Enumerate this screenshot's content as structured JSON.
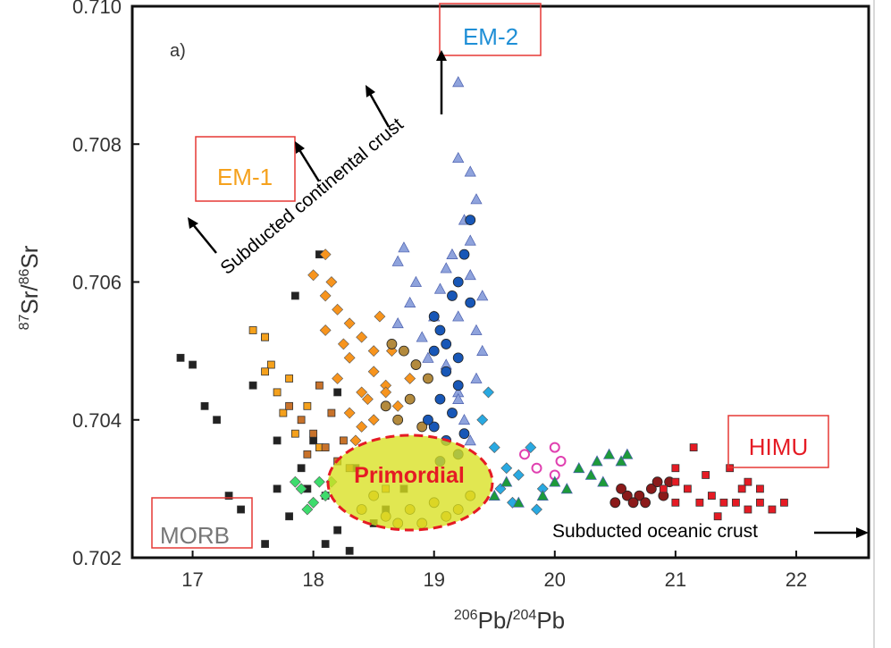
{
  "chart_data": {
    "type": "scatter",
    "panel_label": "a)",
    "xlabel": {
      "sup1": "206",
      "base1": "Pb/",
      "sup2": "204",
      "base2": "Pb"
    },
    "ylabel": {
      "sup1": "87",
      "base1": "Sr/",
      "sup2": "86",
      "base2": "Sr"
    },
    "xlim": [
      16.5,
      22.6
    ],
    "ylim": [
      0.702,
      0.71
    ],
    "x_ticks": [
      "17",
      "18",
      "19",
      "20",
      "21",
      "22"
    ],
    "y_ticks": [
      "0.702",
      "0.704",
      "0.706",
      "0.708",
      "0.710"
    ],
    "end_members": [
      {
        "label": "EM-1",
        "color": "#f5a11c"
      },
      {
        "label": "EM-2",
        "color": "#1f8fd6"
      },
      {
        "label": "HIMU",
        "color": "#e51b24"
      },
      {
        "label": "MORB",
        "color": "#777777"
      }
    ],
    "annotations": {
      "continental": "Subducted continental crust",
      "oceanic": "Subducted oceanic crust",
      "primordial": "Primordial"
    },
    "colors": {
      "box_border": "#e53935",
      "primordial_fill": "#d8e020",
      "primordial_text": "#e51b24"
    },
    "series": [
      {
        "group": "black-squares",
        "marker": "square",
        "color": "#222222",
        "points": [
          [
            16.9,
            0.7049
          ],
          [
            17.0,
            0.7048
          ],
          [
            17.1,
            0.7042
          ],
          [
            17.2,
            0.704
          ],
          [
            17.3,
            0.7029
          ],
          [
            17.4,
            0.7027
          ],
          [
            17.6,
            0.7022
          ],
          [
            17.7,
            0.703
          ],
          [
            17.8,
            0.7026
          ],
          [
            17.9,
            0.7033
          ],
          [
            18.0,
            0.7037
          ],
          [
            18.1,
            0.7029
          ],
          [
            18.2,
            0.7024
          ],
          [
            18.3,
            0.7021
          ],
          [
            17.85,
            0.7058
          ],
          [
            17.6,
            0.7052
          ],
          [
            17.5,
            0.7045
          ],
          [
            18.05,
            0.7064
          ],
          [
            18.2,
            0.7044
          ],
          [
            17.95,
            0.703
          ],
          [
            18.35,
            0.7033
          ],
          [
            18.4,
            0.7027
          ],
          [
            18.5,
            0.7025
          ],
          [
            18.6,
            0.7027
          ],
          [
            18.75,
            0.703
          ],
          [
            17.7,
            0.7037
          ],
          [
            18.1,
            0.7022
          ]
        ]
      },
      {
        "group": "orange-squares",
        "marker": "square",
        "color": "#f5a11c",
        "points": [
          [
            17.5,
            0.7053
          ],
          [
            17.6,
            0.7052
          ],
          [
            17.65,
            0.7048
          ],
          [
            17.7,
            0.7044
          ],
          [
            17.75,
            0.7041
          ],
          [
            17.8,
            0.7046
          ],
          [
            17.85,
            0.7038
          ],
          [
            17.6,
            0.7047
          ],
          [
            17.95,
            0.7042
          ],
          [
            18.05,
            0.7036
          ],
          [
            18.6,
            0.703
          ]
        ]
      },
      {
        "group": "brown-squares",
        "marker": "square",
        "color": "#c8722a",
        "points": [
          [
            17.8,
            0.7042
          ],
          [
            17.9,
            0.704
          ],
          [
            18.0,
            0.7038
          ],
          [
            18.1,
            0.7036
          ],
          [
            18.2,
            0.7034
          ],
          [
            18.15,
            0.7041
          ],
          [
            18.3,
            0.7033
          ],
          [
            18.05,
            0.7045
          ],
          [
            17.95,
            0.7035
          ],
          [
            18.25,
            0.7037
          ]
        ]
      },
      {
        "group": "orange-diamonds",
        "marker": "diamond",
        "color": "#f7941d",
        "points": [
          [
            18.0,
            0.7061
          ],
          [
            18.1,
            0.7058
          ],
          [
            18.2,
            0.7056
          ],
          [
            18.3,
            0.7054
          ],
          [
            18.4,
            0.7052
          ],
          [
            18.5,
            0.705
          ],
          [
            18.1,
            0.7053
          ],
          [
            18.3,
            0.7049
          ],
          [
            18.5,
            0.7047
          ],
          [
            18.6,
            0.7045
          ],
          [
            18.2,
            0.7046
          ],
          [
            18.4,
            0.7044
          ],
          [
            18.3,
            0.7041
          ],
          [
            18.5,
            0.704
          ],
          [
            18.35,
            0.7037
          ],
          [
            18.45,
            0.7043
          ],
          [
            18.7,
            0.7042
          ],
          [
            18.25,
            0.7051
          ],
          [
            18.1,
            0.7064
          ],
          [
            18.55,
            0.7055
          ],
          [
            18.65,
            0.705
          ],
          [
            18.8,
            0.7046
          ],
          [
            18.4,
            0.7039
          ],
          [
            18.6,
            0.7044
          ],
          [
            18.15,
            0.706
          ]
        ]
      },
      {
        "group": "olive-circles",
        "marker": "circle",
        "color": "#b38a3d",
        "points": [
          [
            18.65,
            0.7051
          ],
          [
            18.75,
            0.705
          ],
          [
            18.85,
            0.7048
          ],
          [
            18.95,
            0.7046
          ],
          [
            18.8,
            0.7043
          ],
          [
            18.7,
            0.704
          ],
          [
            18.9,
            0.7039
          ],
          [
            18.6,
            0.7042
          ]
        ]
      },
      {
        "group": "em2-triangles",
        "marker": "triangle",
        "color": "#8fa3dc",
        "points": [
          [
            19.2,
            0.7089
          ],
          [
            19.2,
            0.7078
          ],
          [
            19.3,
            0.7076
          ],
          [
            19.35,
            0.7072
          ],
          [
            19.25,
            0.7069
          ],
          [
            19.15,
            0.7064
          ],
          [
            19.1,
            0.7062
          ],
          [
            19.3,
            0.7061
          ],
          [
            19.4,
            0.7058
          ],
          [
            19.05,
            0.7059
          ],
          [
            18.75,
            0.7065
          ],
          [
            18.7,
            0.7063
          ],
          [
            18.8,
            0.7057
          ],
          [
            18.7,
            0.7054
          ],
          [
            18.9,
            0.7052
          ],
          [
            19.0,
            0.7055
          ],
          [
            19.2,
            0.7055
          ],
          [
            19.35,
            0.7053
          ],
          [
            19.4,
            0.705
          ],
          [
            19.35,
            0.7046
          ],
          [
            19.2,
            0.7044
          ],
          [
            19.25,
            0.704
          ],
          [
            19.3,
            0.7037
          ],
          [
            19.2,
            0.7043
          ],
          [
            18.95,
            0.7049
          ],
          [
            19.1,
            0.7048
          ],
          [
            18.85,
            0.706
          ],
          [
            19.3,
            0.7066
          ]
        ]
      },
      {
        "group": "em2-circles",
        "marker": "circle",
        "color": "#1857b7",
        "points": [
          [
            19.3,
            0.7069
          ],
          [
            19.25,
            0.7064
          ],
          [
            19.2,
            0.706
          ],
          [
            19.15,
            0.7058
          ],
          [
            19.3,
            0.7057
          ],
          [
            19.0,
            0.7055
          ],
          [
            19.05,
            0.7053
          ],
          [
            19.1,
            0.7051
          ],
          [
            19.2,
            0.7049
          ],
          [
            19.0,
            0.705
          ],
          [
            19.1,
            0.7047
          ],
          [
            19.2,
            0.7045
          ],
          [
            19.05,
            0.7043
          ],
          [
            19.15,
            0.7041
          ],
          [
            19.0,
            0.7039
          ],
          [
            19.1,
            0.7037
          ],
          [
            19.2,
            0.7035
          ],
          [
            19.05,
            0.7034
          ],
          [
            18.95,
            0.704
          ],
          [
            19.25,
            0.7038
          ]
        ]
      },
      {
        "group": "blue-diamonds",
        "marker": "diamond",
        "color": "#29a9e1",
        "points": [
          [
            19.4,
            0.704
          ],
          [
            19.5,
            0.7036
          ],
          [
            19.6,
            0.7033
          ],
          [
            19.55,
            0.703
          ],
          [
            19.7,
            0.7032
          ],
          [
            19.8,
            0.7036
          ],
          [
            19.9,
            0.703
          ],
          [
            19.45,
            0.7044
          ],
          [
            19.65,
            0.7028
          ],
          [
            19.85,
            0.7027
          ]
        ]
      },
      {
        "group": "magenta-circles",
        "marker": "ring",
        "color": "#e040b0",
        "points": [
          [
            19.75,
            0.7035
          ],
          [
            19.85,
            0.7033
          ],
          [
            20.0,
            0.7036
          ],
          [
            20.05,
            0.7034
          ],
          [
            20.0,
            0.7032
          ]
        ]
      },
      {
        "group": "green-triangles",
        "marker": "triangle",
        "color": "#1d9a3a",
        "points": [
          [
            19.5,
            0.7029
          ],
          [
            19.6,
            0.7031
          ],
          [
            19.7,
            0.7028
          ],
          [
            19.9,
            0.7029
          ],
          [
            20.0,
            0.7031
          ],
          [
            20.1,
            0.703
          ],
          [
            20.2,
            0.7033
          ],
          [
            20.3,
            0.7032
          ],
          [
            20.35,
            0.7034
          ],
          [
            20.45,
            0.7035
          ],
          [
            20.55,
            0.7034
          ],
          [
            20.4,
            0.7031
          ],
          [
            20.6,
            0.7035
          ]
        ]
      },
      {
        "group": "green-diamonds",
        "marker": "diamond",
        "color": "#3ddc6c",
        "points": [
          [
            17.9,
            0.703
          ],
          [
            18.0,
            0.7028
          ],
          [
            18.1,
            0.7029
          ],
          [
            17.85,
            0.7031
          ],
          [
            18.05,
            0.7031
          ],
          [
            17.95,
            0.7027
          ],
          [
            18.15,
            0.7031
          ]
        ]
      },
      {
        "group": "himu-circles",
        "marker": "circle",
        "color": "#8b1a1a",
        "points": [
          [
            20.5,
            0.7028
          ],
          [
            20.6,
            0.7029
          ],
          [
            20.7,
            0.7029
          ],
          [
            20.8,
            0.703
          ],
          [
            20.9,
            0.7029
          ],
          [
            20.75,
            0.7028
          ],
          [
            20.65,
            0.7028
          ],
          [
            20.85,
            0.7031
          ],
          [
            20.55,
            0.703
          ],
          [
            20.95,
            0.7031
          ]
        ]
      },
      {
        "group": "himu-squares",
        "marker": "square",
        "color": "#e51b24",
        "points": [
          [
            20.9,
            0.703
          ],
          [
            21.0,
            0.7031
          ],
          [
            21.0,
            0.7028
          ],
          [
            21.1,
            0.703
          ],
          [
            21.2,
            0.7028
          ],
          [
            21.3,
            0.7029
          ],
          [
            21.4,
            0.7028
          ],
          [
            21.5,
            0.7028
          ],
          [
            21.6,
            0.7027
          ],
          [
            21.7,
            0.7028
          ],
          [
            21.8,
            0.7027
          ],
          [
            21.9,
            0.7028
          ],
          [
            21.25,
            0.7032
          ],
          [
            21.15,
            0.7036
          ],
          [
            21.45,
            0.7033
          ],
          [
            21.7,
            0.703
          ],
          [
            21.6,
            0.7031
          ],
          [
            21.35,
            0.7026
          ],
          [
            21.55,
            0.703
          ],
          [
            21.0,
            0.7033
          ]
        ]
      },
      {
        "group": "yellow-circles",
        "marker": "circle",
        "color": "#e8b23a",
        "points": [
          [
            18.4,
            0.7027
          ],
          [
            18.6,
            0.7026
          ],
          [
            18.8,
            0.7027
          ],
          [
            19.0,
            0.7028
          ],
          [
            19.2,
            0.7027
          ],
          [
            19.3,
            0.7029
          ],
          [
            18.7,
            0.7025
          ],
          [
            18.9,
            0.7025
          ],
          [
            19.1,
            0.7026
          ],
          [
            18.5,
            0.7029
          ]
        ]
      }
    ]
  }
}
